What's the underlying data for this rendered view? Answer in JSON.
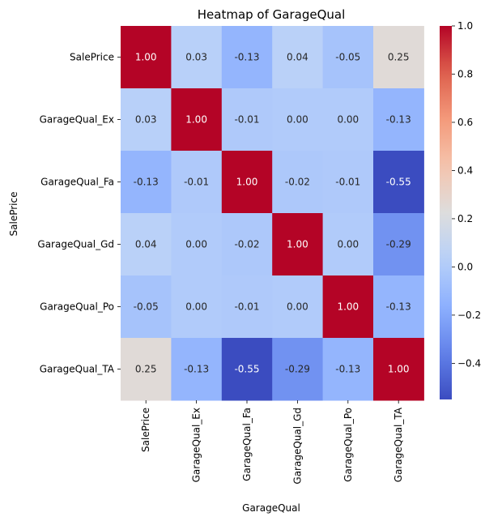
{
  "chart_data": {
    "type": "heatmap",
    "title": "Heatmap of GarageQual",
    "xlabel": "GarageQual",
    "ylabel": "SalePrice",
    "row_labels": [
      "SalePrice",
      "GarageQual_Ex",
      "GarageQual_Fa",
      "GarageQual_Gd",
      "GarageQual_Po",
      "GarageQual_TA"
    ],
    "col_labels": [
      "SalePrice",
      "GarageQual_Ex",
      "GarageQual_Fa",
      "GarageQual_Gd",
      "GarageQual_Po",
      "GarageQual_TA"
    ],
    "values": [
      [
        1.0,
        0.03,
        -0.13,
        0.04,
        -0.05,
        0.25
      ],
      [
        0.03,
        1.0,
        -0.01,
        -0.0,
        -0.0,
        -0.13
      ],
      [
        -0.13,
        -0.01,
        1.0,
        -0.02,
        -0.01,
        -0.55
      ],
      [
        0.04,
        -0.0,
        -0.02,
        1.0,
        -0.0,
        -0.29
      ],
      [
        -0.05,
        -0.0,
        -0.01,
        -0.0,
        1.0,
        -0.13
      ],
      [
        0.25,
        -0.13,
        -0.55,
        -0.29,
        -0.13,
        1.0
      ]
    ],
    "colormap": "coolwarm",
    "vmin": -0.55,
    "vmax": 1.0,
    "colorbar_ticks": [
      -0.4,
      -0.2,
      0.0,
      0.2,
      0.4,
      0.6,
      0.8,
      1.0
    ],
    "colorbar_tick_labels": [
      "−0.4",
      "−0.2",
      "0.0",
      "0.2",
      "0.4",
      "0.6",
      "0.8",
      "1.0"
    ],
    "annotation_format": "0.00"
  }
}
